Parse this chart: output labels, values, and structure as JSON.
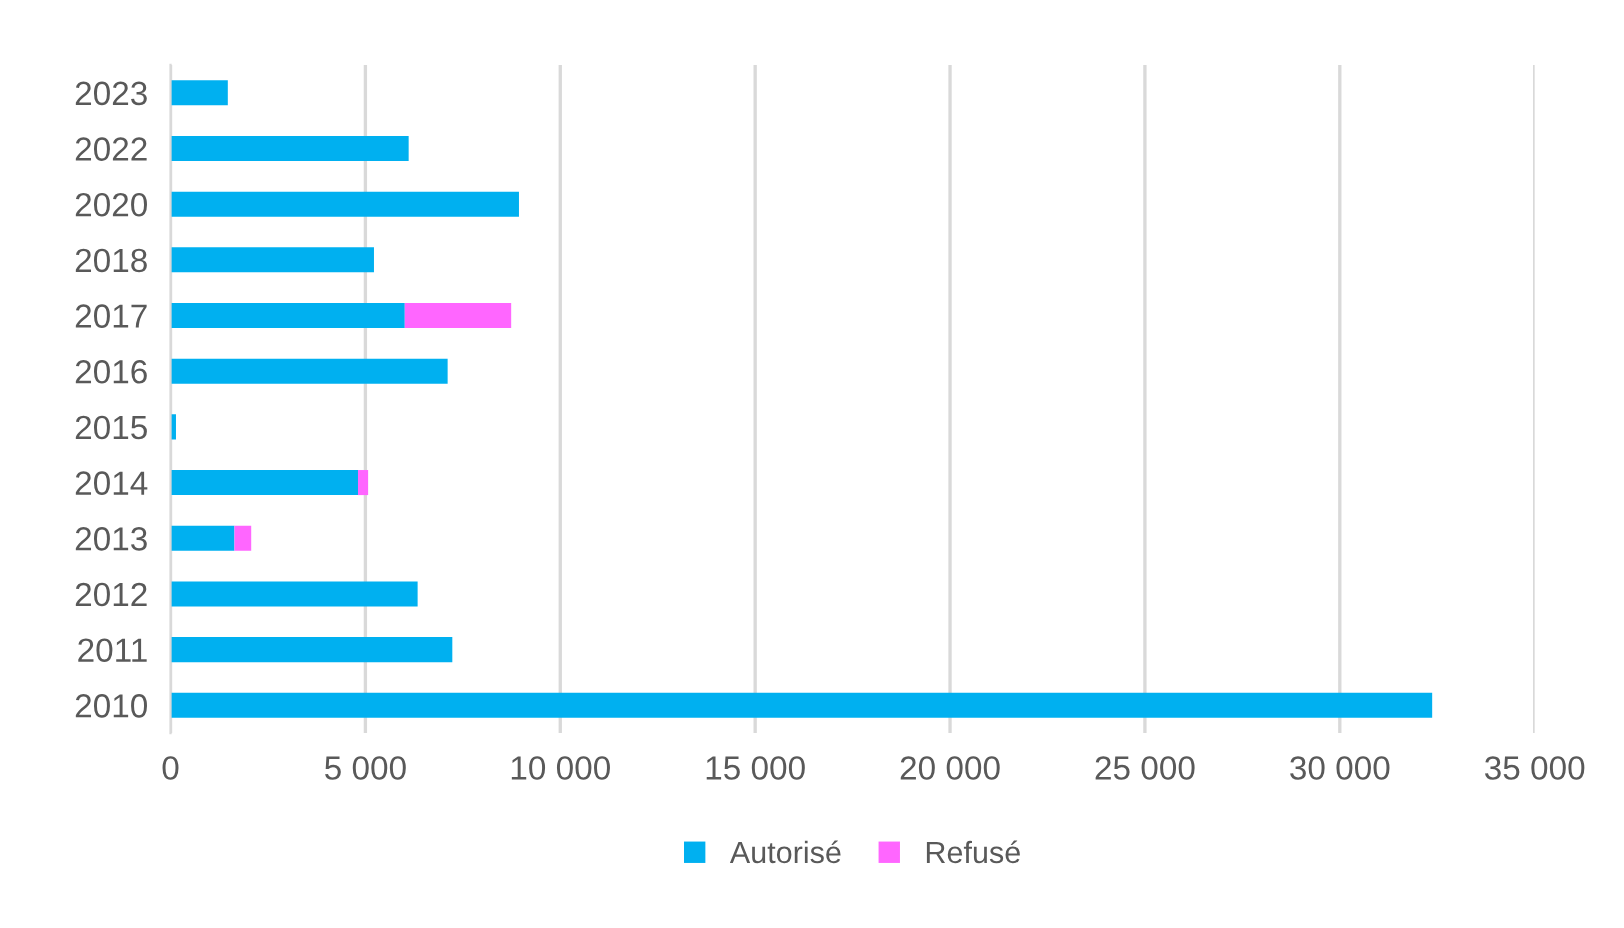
{
  "chart_data": {
    "type": "bar",
    "orientation": "horizontal",
    "stacked": true,
    "categories": [
      "2023",
      "2022",
      "2020",
      "2018",
      "2017",
      "2016",
      "2015",
      "2014",
      "2013",
      "2012",
      "2011",
      "2010"
    ],
    "series": [
      {
        "name": "Autorisé",
        "color": "#00b0f0",
        "values": [
          1470,
          6110,
          8940,
          5220,
          6010,
          7110,
          140,
          4810,
          1640,
          6340,
          7230,
          32370
        ]
      },
      {
        "name": "Refusé",
        "color": "#ff66ff",
        "values": [
          null,
          null,
          null,
          null,
          2730,
          null,
          null,
          260,
          430,
          null,
          null,
          null
        ]
      }
    ],
    "xlim": [
      0,
      35000
    ],
    "xticks": [
      {
        "value": 0,
        "label": "0"
      },
      {
        "value": 5000,
        "label": "5 000"
      },
      {
        "value": 10000,
        "label": "10 000"
      },
      {
        "value": 15000,
        "label": "15 000"
      },
      {
        "value": 20000,
        "label": "20 000"
      },
      {
        "value": 25000,
        "label": "25 000"
      },
      {
        "value": 30000,
        "label": "30 000"
      },
      {
        "value": 35000,
        "label": "35 000"
      }
    ],
    "grid": "x",
    "legend": "bottom"
  }
}
